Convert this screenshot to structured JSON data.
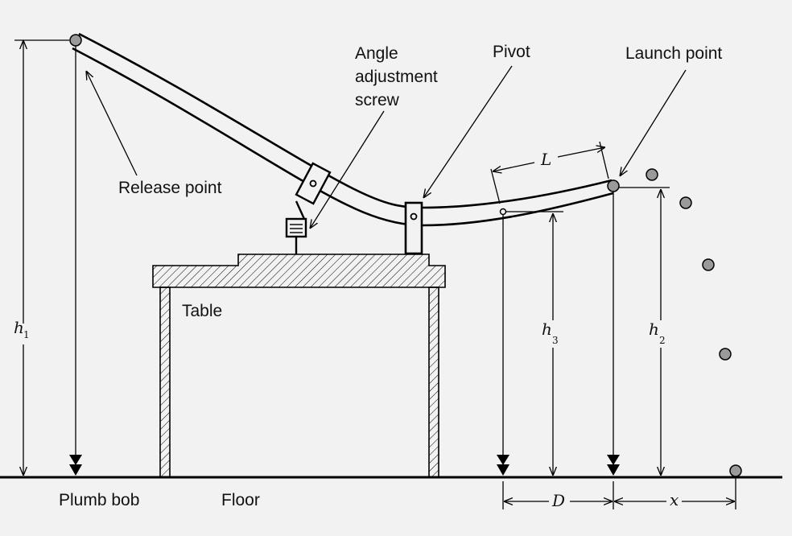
{
  "labels": {
    "angle_line1": "Angle",
    "angle_line2": "adjustment",
    "angle_line3": "screw",
    "pivot": "Pivot",
    "launch_point": "Launch point",
    "release_point": "Release point",
    "table": "Table",
    "plumb_bob": "Plumb bob",
    "floor": "Floor"
  },
  "dims": {
    "h1": "h",
    "h1_sub": "1",
    "h2": "h",
    "h2_sub": "2",
    "h3": "h",
    "h3_sub": "3",
    "L": "L",
    "D": "D",
    "x": "x"
  },
  "colors": {
    "background": "#f2f2f2",
    "ball": "#9a9a9a",
    "ink": "#000000"
  }
}
